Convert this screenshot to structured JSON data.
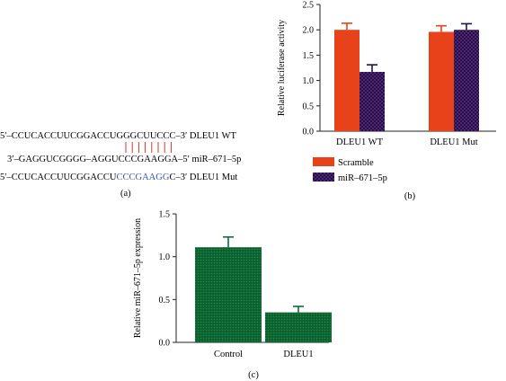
{
  "panel_a": {
    "label": "(a)",
    "lines": [
      {
        "name": "dleu1-wt",
        "segments": [
          {
            "text": "5′–CCUCACCUUCGGACCU",
            "color": "#1a1a1a"
          },
          {
            "text": "GGGCUUCCC",
            "color": "#1a1a1a"
          },
          {
            "text": "–3′ DLEU1 WT",
            "color": "#1a1a1a"
          }
        ]
      },
      {
        "name": "mir-671-5p",
        "segments": [
          {
            "text": "3′–GAGGUCGGGG–AGGUCCCGAAGGA–5′  miR–671–5p",
            "color": "#1a1a1a"
          }
        ]
      },
      {
        "name": "dleu1-mut",
        "segments": [
          {
            "text": "5′–CCUCACCUUCGGACCU",
            "color": "#1a1a1a"
          },
          {
            "text": "CCCGAAGG",
            "color": "#3a55b4"
          },
          {
            "text": "C–3′ DLEU1 Mut",
            "color": "#1a1a1a"
          }
        ]
      }
    ],
    "pair_line_color": "#d9342b"
  },
  "chart_data": [
    {
      "type": "bar",
      "panel": "(b)",
      "categories": [
        "DLEU1 WT",
        "DLEU1 Mut"
      ],
      "series": [
        {
          "name": "Scramble",
          "values": [
            2.0,
            1.96
          ],
          "errors": [
            0.13,
            0.12
          ],
          "color": "#e8421b"
        },
        {
          "name": "miR–671–5p",
          "values": [
            1.17,
            2.0
          ],
          "errors": [
            0.14,
            0.12
          ],
          "color": "#1e1240"
        }
      ],
      "ylabel": "Relative luciferase activity",
      "ylim": [
        0,
        2.5
      ],
      "yticks": [
        "0.0",
        "0.5",
        "1.0",
        "1.5",
        "2.0",
        "2.5"
      ],
      "legend": "bottom"
    },
    {
      "type": "bar",
      "panel": "(c)",
      "categories": [
        "Control",
        "DLEU1"
      ],
      "values": [
        1.11,
        0.35
      ],
      "errors": [
        0.12,
        0.07
      ],
      "color": "#0e6b35",
      "ylabel": "Relative miR–671–5p expression",
      "ylim": [
        0,
        1.5
      ],
      "yticks": [
        "0.0",
        "0.5",
        "1.0",
        "1.5"
      ]
    }
  ]
}
